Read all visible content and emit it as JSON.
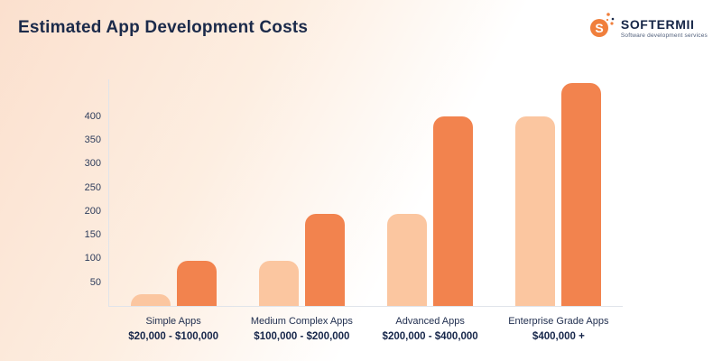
{
  "header": {
    "title": "Estimated App Development Costs"
  },
  "logo": {
    "name": "SOFTERMII",
    "tagline": "Software development services"
  },
  "colors": {
    "accent_light": "#FBC6A0",
    "accent_dark": "#F2834E",
    "navy": "#1B2A4A"
  },
  "chart_data": {
    "type": "bar",
    "title": "Estimated App Development Costs",
    "categories": [
      "Simple Apps",
      "Medium Complex Apps",
      "Advanced Apps",
      "Enterprise Grade Apps"
    ],
    "cost_ranges": [
      "$20,000 - $100,000",
      "$100,000 - $200,000",
      "$200,000 - $400,000",
      "$400,000 +"
    ],
    "series": [
      {
        "name": "range-low-bar",
        "color": "#FBC6A0",
        "values": [
          25,
          95,
          195,
          400
        ]
      },
      {
        "name": "range-high-bar",
        "color": "#F2834E",
        "values": [
          95,
          195,
          400,
          470
        ]
      }
    ],
    "yticks": [
      50,
      100,
      150,
      200,
      250,
      300,
      350,
      400
    ],
    "ylim": [
      0,
      480
    ],
    "grid": false,
    "legend": "none"
  }
}
